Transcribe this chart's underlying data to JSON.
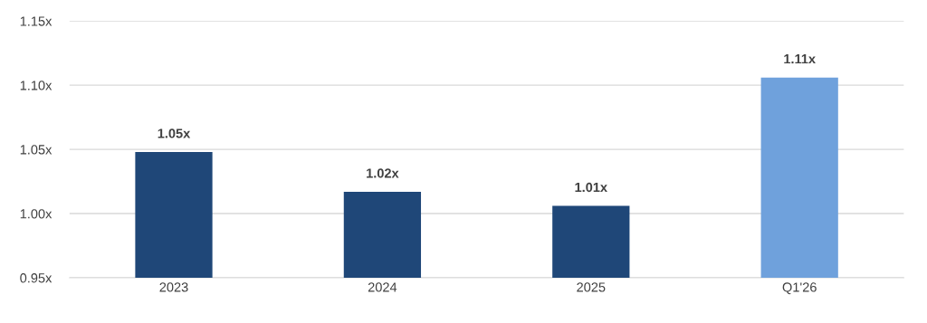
{
  "chart_data": {
    "type": "bar",
    "categories": [
      "2023",
      "2024",
      "2025",
      "Q1'26"
    ],
    "values": [
      1.048,
      1.017,
      1.006,
      1.106
    ],
    "colors": [
      "#1f4778",
      "#1f4778",
      "#1f4778",
      "#6fa1dc"
    ],
    "value_labels": [
      "1.05x",
      "1.02x",
      "1.01x",
      "1.11x"
    ],
    "ylim": [
      0.95,
      1.15
    ],
    "yticks": [
      {
        "value": 0.95,
        "label": "0.95x"
      },
      {
        "value": 1.0,
        "label": "1.00x"
      },
      {
        "value": 1.05,
        "label": "1.05x"
      },
      {
        "value": 1.1,
        "label": "1.10x"
      },
      {
        "value": 1.15,
        "label": "1.15x"
      }
    ],
    "grid": "y"
  }
}
